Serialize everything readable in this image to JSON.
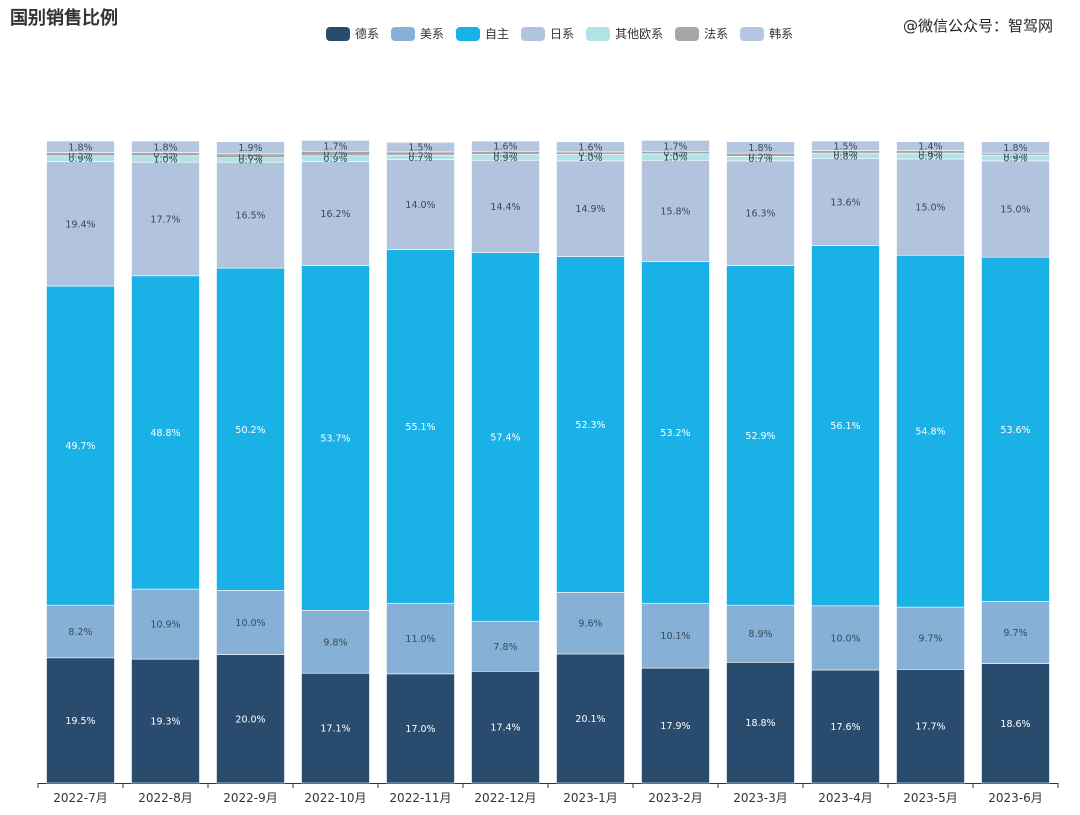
{
  "header": {
    "title": "国别销售比例",
    "watermark": "@微信公众号：智驾网"
  },
  "chart_data": {
    "type": "bar",
    "stacked": true,
    "title": "国别销售比例",
    "xlabel": "",
    "ylabel": "",
    "ylim": [
      0,
      100
    ],
    "categories": [
      "2022-7月",
      "2022-8月",
      "2022-9月",
      "2022-10月",
      "2022-11月",
      "2022-12月",
      "2023-1月",
      "2023-2月",
      "2023-3月",
      "2023-4月",
      "2023-5月",
      "2023-6月"
    ],
    "series": [
      {
        "name": "德系",
        "color": "#284b6e",
        "values": [
          19.5,
          19.3,
          20.0,
          17.1,
          17.0,
          17.4,
          20.1,
          17.9,
          18.8,
          17.6,
          17.7,
          18.6
        ],
        "labels": [
          "19.5%",
          "19.3%",
          "20.0%",
          "17.1%",
          "17.0%",
          "17.4%",
          "20.1%",
          "17.9%",
          "18.8%",
          "17.6%",
          "17.7%",
          "18.6%"
        ]
      },
      {
        "name": "美系",
        "color": "#86b0d5",
        "values": [
          8.2,
          10.9,
          10.0,
          9.8,
          11.0,
          7.8,
          9.6,
          10.1,
          8.9,
          10.0,
          9.7,
          9.7
        ],
        "labels": [
          "8.2%",
          "10.9%",
          "10.0%",
          "9.8%",
          "11.0%",
          "7.8%",
          "9.6%",
          "10.1%",
          "8.9%",
          "10.0%",
          "9.7%",
          "9.7%"
        ]
      },
      {
        "name": "自主",
        "color": "#1ab2e6",
        "values": [
          49.7,
          48.8,
          50.2,
          53.7,
          55.1,
          57.4,
          52.3,
          53.2,
          52.9,
          56.1,
          54.8,
          53.6
        ],
        "labels": [
          "49.7%",
          "48.8%",
          "50.2%",
          "53.7%",
          "55.1%",
          "57.4%",
          "52.3%",
          "53.2%",
          "52.9%",
          "56.1%",
          "54.8%",
          "53.6%"
        ]
      },
      {
        "name": "日系",
        "color": "#b2c3de",
        "values": [
          19.4,
          17.7,
          16.5,
          16.2,
          14.0,
          14.4,
          14.9,
          15.8,
          16.3,
          13.6,
          15.0,
          15.0
        ],
        "labels": [
          "19.4%",
          "17.7%",
          "16.5%",
          "16.2%",
          "14.0%",
          "14.4%",
          "14.9%",
          "15.8%",
          "16.3%",
          "13.6%",
          "15.0%",
          "15.0%"
        ]
      },
      {
        "name": "其他欧系",
        "color": "#b0e2e6",
        "values": [
          0.9,
          1.0,
          0.7,
          0.9,
          0.7,
          0.9,
          1.0,
          1.0,
          0.7,
          0.8,
          0.9,
          0.9
        ],
        "labels": [
          "0.9%",
          "1.0%",
          "0.7%",
          "0.9%",
          "0.7%",
          "0.9%",
          "1.0%",
          "1.0%",
          "0.7%",
          "0.8%",
          "0.9%",
          "0.9%"
        ]
      },
      {
        "name": "法系",
        "color": "#a6a6a6",
        "values": [
          0.5,
          0.5,
          0.6,
          0.7,
          0.5,
          0.5,
          0.4,
          0.4,
          0.5,
          0.4,
          0.4,
          0.3
        ],
        "labels": [
          "0.5%",
          "0.5%",
          "0.6%",
          "0.7%",
          "0.5%",
          "0.5%",
          "0.4%",
          "0.4%",
          "0.5%",
          "0.4%",
          "0.4%",
          "0.3%"
        ]
      },
      {
        "name": "韩系",
        "color": "#b5c6e0",
        "values": [
          1.8,
          1.8,
          1.9,
          1.7,
          1.5,
          1.6,
          1.6,
          1.7,
          1.8,
          1.5,
          1.4,
          1.8
        ],
        "labels": [
          "1.8%",
          "1.8%",
          "1.9%",
          "1.7%",
          "1.5%",
          "1.6%",
          "1.6%",
          "1.7%",
          "1.8%",
          "1.5%",
          "1.4%",
          "1.8%"
        ]
      }
    ],
    "legend": "top-center",
    "grid": false
  }
}
